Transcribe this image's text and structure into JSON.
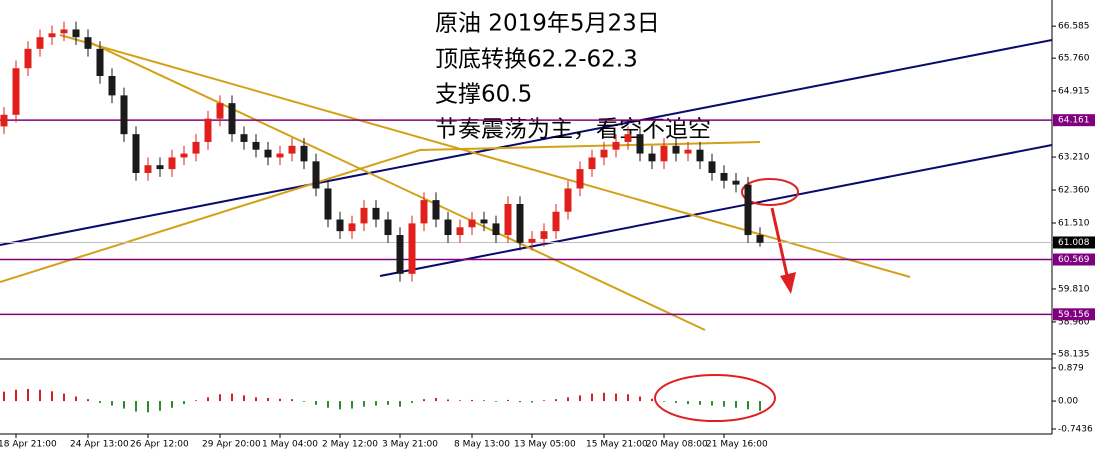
{
  "chart_data": {
    "type": "candlestick",
    "annotations": [
      "原油 2019年5月23日",
      "顶底转换62.2-62.3",
      "支撑60.5",
      "节奏震荡为主，看空不追空"
    ],
    "categories": [
      null,
      "18 Apr 21:00",
      null,
      null,
      null,
      null,
      null,
      "24 Apr 13:00",
      null,
      null,
      null,
      null,
      "26 Apr 12:00",
      null,
      null,
      null,
      null,
      null,
      "29 Apr 20:00",
      null,
      null,
      null,
      null,
      "1 May 04:00",
      null,
      null,
      null,
      null,
      "2 May 12:00",
      null,
      null,
      null,
      null,
      "3 May 21:00",
      null,
      null,
      null,
      null,
      null,
      "8 May 13:00",
      null,
      null,
      null,
      null,
      "13 May 05:00",
      null,
      null,
      null,
      null,
      null,
      "15 May 21:00",
      null,
      null,
      null,
      null,
      "20 May 08:00",
      null,
      null,
      null,
      null,
      "21 May 16:00",
      null,
      null,
      null
    ],
    "open": [
      64.0,
      64.3,
      65.5,
      66.0,
      66.3,
      66.4,
      66.5,
      66.3,
      66.0,
      65.3,
      64.8,
      63.8,
      62.8,
      63.0,
      62.9,
      63.2,
      63.3,
      63.6,
      64.2,
      64.6,
      63.8,
      63.6,
      63.4,
      63.2,
      63.3,
      63.5,
      63.1,
      62.4,
      61.6,
      61.3,
      61.5,
      61.9,
      61.6,
      61.2,
      60.2,
      61.5,
      62.1,
      61.6,
      61.2,
      61.4,
      61.6,
      61.5,
      61.2,
      62.0,
      61.0,
      61.1,
      61.3,
      61.8,
      62.4,
      62.9,
      63.2,
      63.4,
      63.6,
      63.8,
      63.3,
      63.1,
      63.5,
      63.3,
      63.4,
      63.1,
      62.8,
      62.6,
      62.5,
      61.2
    ],
    "high": [
      64.5,
      65.7,
      66.2,
      66.5,
      66.6,
      66.7,
      66.7,
      66.5,
      66.2,
      65.5,
      65.0,
      64.0,
      63.2,
      63.2,
      63.4,
      63.5,
      63.8,
      64.4,
      64.8,
      64.8,
      64.0,
      63.8,
      63.6,
      63.5,
      63.7,
      63.7,
      63.3,
      62.6,
      61.8,
      61.7,
      62.1,
      62.1,
      61.8,
      61.4,
      61.7,
      62.3,
      62.3,
      61.8,
      61.6,
      61.8,
      61.8,
      61.7,
      62.2,
      62.2,
      61.3,
      61.5,
      62.0,
      62.6,
      63.1,
      63.4,
      63.6,
      63.8,
      64.0,
      64.0,
      63.5,
      63.7,
      63.7,
      63.6,
      63.6,
      63.3,
      63.0,
      62.8,
      62.7,
      61.4
    ],
    "low": [
      63.8,
      64.1,
      65.3,
      65.8,
      66.1,
      66.2,
      66.1,
      65.8,
      65.1,
      64.6,
      63.6,
      62.6,
      62.6,
      62.7,
      62.7,
      63.0,
      63.1,
      63.4,
      64.0,
      63.6,
      63.4,
      63.2,
      63.0,
      63.0,
      63.1,
      62.9,
      62.2,
      61.4,
      61.1,
      61.1,
      61.3,
      61.4,
      61.0,
      60.0,
      60.0,
      61.3,
      61.4,
      61.0,
      61.0,
      61.2,
      61.3,
      61.0,
      61.0,
      60.8,
      60.8,
      60.9,
      61.1,
      61.6,
      62.2,
      62.7,
      63.0,
      63.2,
      63.4,
      63.1,
      62.9,
      62.9,
      63.1,
      63.1,
      62.9,
      62.6,
      62.4,
      62.3,
      61.0,
      60.9
    ],
    "close": [
      64.3,
      65.5,
      66.0,
      66.3,
      66.4,
      66.5,
      66.3,
      66.0,
      65.3,
      64.8,
      63.8,
      62.8,
      63.0,
      62.9,
      63.2,
      63.3,
      63.6,
      64.2,
      64.6,
      63.8,
      63.6,
      63.4,
      63.2,
      63.3,
      63.5,
      63.1,
      62.4,
      61.6,
      61.3,
      61.5,
      61.9,
      61.6,
      61.2,
      60.2,
      61.5,
      62.1,
      61.6,
      61.2,
      61.4,
      61.6,
      61.5,
      61.2,
      62.0,
      61.0,
      61.1,
      61.3,
      61.8,
      62.4,
      62.9,
      63.2,
      63.4,
      63.6,
      63.8,
      63.3,
      63.1,
      63.5,
      63.3,
      63.4,
      63.1,
      62.8,
      62.6,
      62.5,
      61.2,
      61.0
    ],
    "up_color": "#e0201b",
    "down_color": "#1a1a1a",
    "ylim": [
      58.03,
      67.13
    ],
    "yticks": [
      66.585,
      {
        "value": 65.76,
        "label": "65.760"
      },
      64.915,
      {
        "value": 63.21,
        "label": "63.210"
      },
      {
        "value": 62.36,
        "label": "62.360"
      },
      {
        "value": 61.51,
        "label": "61.510"
      },
      {
        "value": 59.81,
        "label": "59.810"
      },
      {
        "value": 58.96,
        "label": "58.960"
      },
      58.135
    ],
    "levels": [
      64.161,
      60.569,
      59.156
    ],
    "level_color": "#800080",
    "last_price": 61.008,
    "macd": {
      "values": [
        0.25,
        0.3,
        0.32,
        0.3,
        0.26,
        0.2,
        0.12,
        0.05,
        -0.05,
        -0.12,
        -0.2,
        -0.28,
        -0.3,
        -0.26,
        -0.18,
        -0.08,
        0.02,
        0.1,
        0.18,
        0.2,
        0.15,
        0.1,
        0.08,
        0.06,
        0.05,
        -0.02,
        -0.1,
        -0.18,
        -0.22,
        -0.2,
        -0.15,
        -0.12,
        -0.1,
        -0.15,
        -0.05,
        0.05,
        0.08,
        0.04,
        0.02,
        0.03,
        0.02,
        -0.02,
        0.03,
        -0.03,
        -0.04,
        0.02,
        0.05,
        0.1,
        0.15,
        0.2,
        0.22,
        0.2,
        0.18,
        0.12,
        0.06,
        -0.02,
        -0.05,
        -0.08,
        -0.1,
        -0.12,
        -0.15,
        -0.18,
        -0.22,
        -0.26
      ],
      "pos_color": "#d42020",
      "neg_color": "#2e8b2e",
      "ylim": [
        -0.824,
        1.039
      ],
      "yticks": [
        0.879,
        {
          "value": 0,
          "label": "0.00"
        },
        -0.7436
      ]
    }
  }
}
